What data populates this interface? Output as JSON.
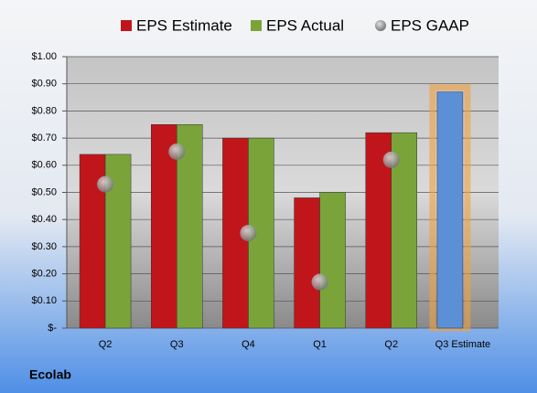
{
  "chart_data": {
    "type": "bar",
    "title": "Ecolab",
    "categories": [
      "Q2",
      "Q3",
      "Q4",
      "Q1",
      "Q2",
      "Q3 Estimate"
    ],
    "series": [
      {
        "name": "EPS Estimate",
        "color": "#c0161b",
        "colors": [
          "#c0161b",
          "#c0161b",
          "#c0161b",
          "#c0161b",
          "#c0161b",
          "#5b8fd6"
        ],
        "values": [
          0.64,
          0.75,
          0.7,
          0.48,
          0.72,
          0.87
        ]
      },
      {
        "name": "EPS Actual",
        "color": "#7aa43a",
        "values": [
          0.64,
          0.75,
          0.7,
          0.5,
          0.72,
          null
        ]
      },
      {
        "name": "EPS GAAP",
        "color": "#8c8c8c",
        "marker": "circle",
        "values": [
          0.53,
          0.65,
          0.35,
          0.17,
          0.62,
          null
        ]
      }
    ],
    "ylim": [
      0,
      1.0
    ],
    "yticks": [
      {
        "value": 0,
        "label": "$-"
      },
      {
        "value": 0.1,
        "label": "$0.10"
      },
      {
        "value": 0.2,
        "label": "$0.20"
      },
      {
        "value": 0.3,
        "label": "$0.30"
      },
      {
        "value": 0.4,
        "label": "$0.40"
      },
      {
        "value": 0.5,
        "label": "$0.50"
      },
      {
        "value": 0.6,
        "label": "$0.60"
      },
      {
        "value": 0.7,
        "label": "$0.70"
      },
      {
        "value": 0.8,
        "label": "$0.80"
      },
      {
        "value": 0.9,
        "label": "$0.90"
      },
      {
        "value": 1.0,
        "label": "$1.00"
      }
    ],
    "grid": true,
    "legend": "top"
  }
}
